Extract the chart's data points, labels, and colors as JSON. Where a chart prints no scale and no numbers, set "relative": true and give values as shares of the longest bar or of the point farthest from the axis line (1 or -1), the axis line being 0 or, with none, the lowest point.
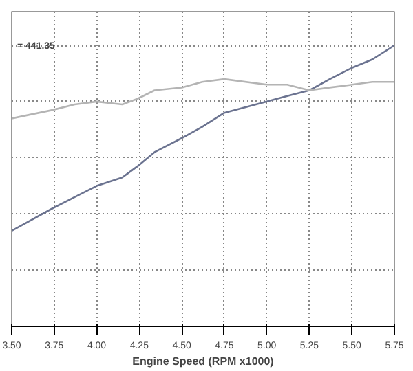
{
  "chart_data": {
    "type": "line",
    "relative": true,
    "xlabel": "Engine Speed (RPM x1000)",
    "annotations": [
      "= 441.35"
    ],
    "x": [
      3.5,
      3.74,
      3.87,
      4.0,
      4.15,
      4.24,
      4.34,
      4.5,
      4.62,
      4.75,
      5.0,
      5.12,
      5.25,
      5.37,
      5.5,
      5.62,
      5.75
    ],
    "series": [
      {
        "color": "#6b7390",
        "values": [
          0.34,
          0.42,
          0.46,
          0.5,
          0.53,
          0.57,
          0.62,
          0.67,
          0.71,
          0.76,
          0.8,
          0.82,
          0.84,
          0.88,
          0.92,
          0.95,
          1
        ]
      },
      {
        "color": "#b4b4b4",
        "values": [
          0.74,
          0.77,
          0.79,
          0.8,
          0.79,
          0.81,
          0.84,
          0.85,
          0.87,
          0.88,
          0.86,
          0.86,
          0.84,
          0.85,
          0.86,
          0.87,
          0.87
        ]
      }
    ],
    "xlim": [
      3.5,
      5.75
    ],
    "xticks": [
      {
        "value": 3.5,
        "label": "3.50"
      },
      {
        "value": 3.75,
        "label": "3.75"
      },
      {
        "value": 4.0,
        "label": "4.00"
      },
      {
        "value": 4.25,
        "label": "4.25"
      },
      {
        "value": 4.5,
        "label": "4.50"
      },
      {
        "value": 4.75,
        "label": "4.75"
      },
      {
        "value": 5.0,
        "label": "5.00"
      },
      {
        "value": 5.25,
        "label": "5.25"
      },
      {
        "value": 5.5,
        "label": "5.50"
      },
      {
        "value": 5.75,
        "label": "5.75"
      }
    ],
    "grid": true,
    "marker": "none",
    "line_style": "solid"
  }
}
